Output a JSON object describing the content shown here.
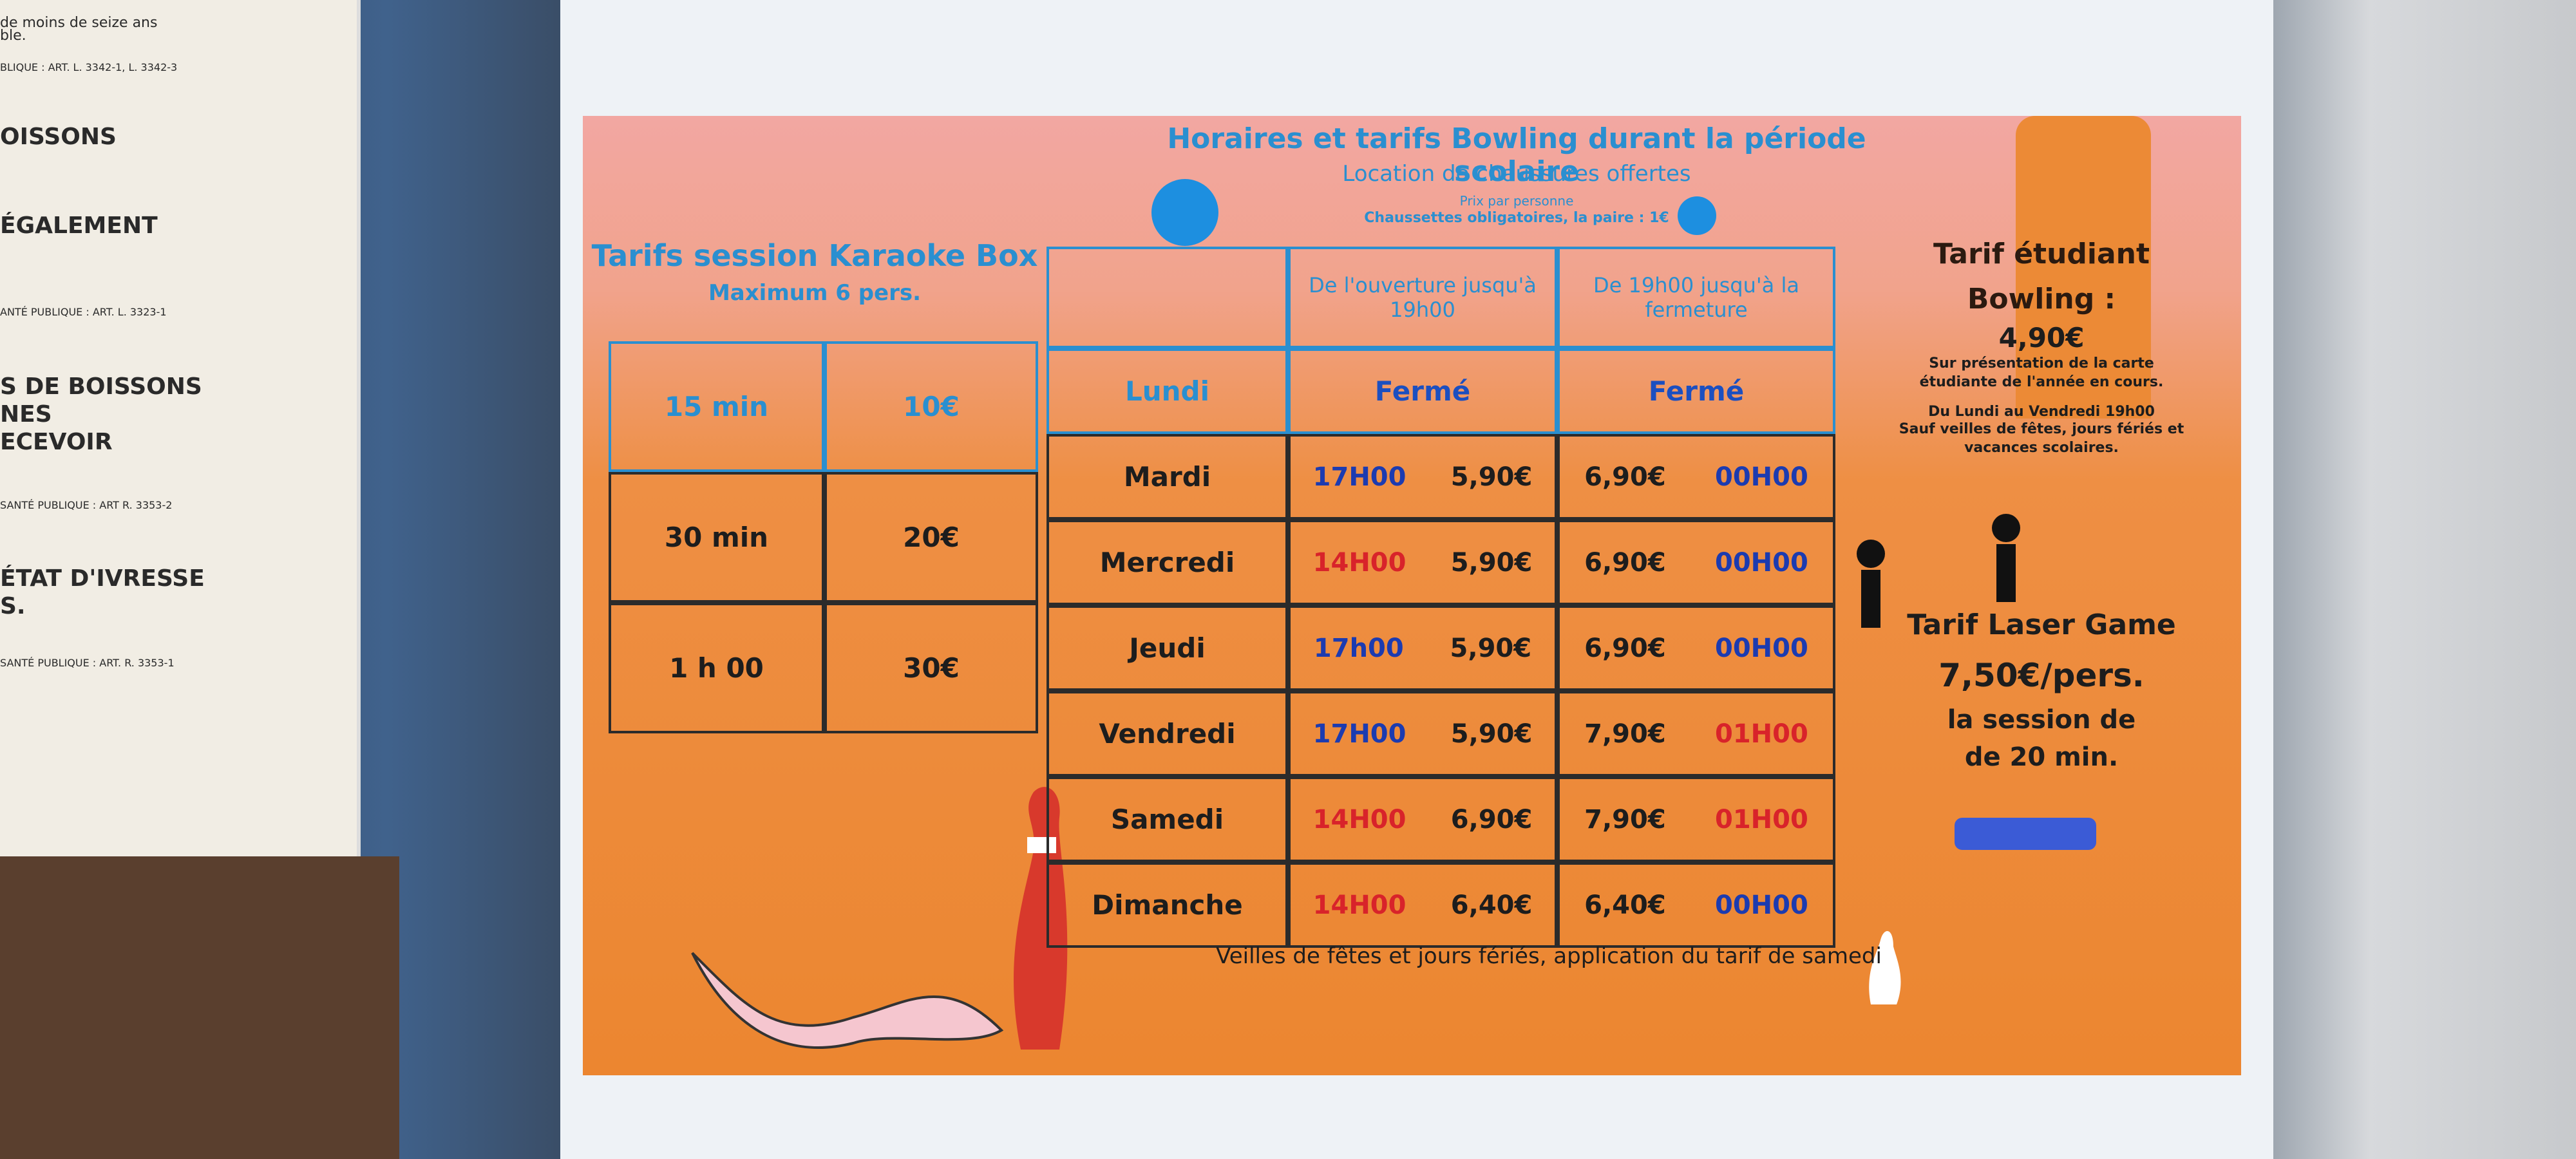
{
  "left_notice": {
    "lines": [
      "de moins de seize ans",
      "ble.",
      "BLIQUE : ART. L. 3342-1, L. 3342-3",
      "OISSONS",
      "ÉGALEMENT",
      "ANTÉ PUBLIQUE : ART. L. 3323-1",
      "S DE BOISSONS",
      "NES",
      "ECEVOIR",
      "SANTÉ PUBLIQUE : ART R. 3353-2",
      "ÉTAT D'IVRESSE",
      "S.",
      "SANTÉ PUBLIQUE : ART. R. 3353-1"
    ]
  },
  "poster": {
    "header": {
      "title": "Horaires et tarifs Bowling durant la période scolaire",
      "subtitle": "Location de chaussures offertes",
      "per_person": "Prix par personne",
      "socks": "Chaussettes obligatoires, la paire : 1€"
    },
    "karaoke": {
      "title": "Tarifs session Karaoke Box",
      "subtitle": "Maximum 6 pers.",
      "rows": [
        [
          "15 min",
          "10€"
        ],
        [
          "30 min",
          "20€"
        ],
        [
          "1 h 00",
          "30€"
        ]
      ]
    },
    "bowling": {
      "columns": [
        "De l'ouverture jusqu'à 19h00",
        "De 19h00 jusqu'à la fermeture"
      ],
      "rows": [
        {
          "day": "Lundi",
          "cells": [
            "Fermé",
            "Fermé"
          ]
        },
        {
          "day": "Mardi",
          "cells": [
            "17H00",
            "5,90€",
            "6,90€",
            "00H00"
          ],
          "time_colors": [
            "#1c3bb0",
            "#1c3bb0"
          ]
        },
        {
          "day": "Mercredi",
          "cells": [
            "14H00",
            "5,90€",
            "6,90€",
            "00H00"
          ],
          "time_colors": [
            "#d8232a",
            "#1c3bb0"
          ]
        },
        {
          "day": "Jeudi",
          "cells": [
            "17h00",
            "5,90€",
            "6,90€",
            "00H00"
          ],
          "time_colors": [
            "#1c3bb0",
            "#1c3bb0"
          ]
        },
        {
          "day": "Vendredi",
          "cells": [
            "17H00",
            "5,90€",
            "7,90€",
            "01H00"
          ],
          "time_colors": [
            "#1c3bb0",
            "#d8232a"
          ]
        },
        {
          "day": "Samedi",
          "cells": [
            "14H00",
            "6,90€",
            "7,90€",
            "01H00"
          ],
          "time_colors": [
            "#d8232a",
            "#d8232a"
          ]
        },
        {
          "day": "Dimanche",
          "cells": [
            "14H00",
            "6,40€",
            "6,40€",
            "00H00"
          ],
          "time_colors": [
            "#d8232a",
            "#1c3bb0"
          ]
        }
      ],
      "note": "Veilles de fêtes et jours fériés, application du tarif de samedi"
    },
    "student": {
      "title": "Tarif étudiant Bowling :",
      "price": "4,90€",
      "lines": [
        "Sur présentation de la carte étudiante de l'année en cours.",
        "Du Lundi au Vendredi 19h00",
        "Sauf veilles de fêtes, jours fériés et vacances scolaires."
      ]
    },
    "laser": {
      "title": "Tarif Laser Game",
      "price": "7,50€/pers.",
      "lines": [
        "la session de",
        "de 20 min."
      ]
    }
  }
}
